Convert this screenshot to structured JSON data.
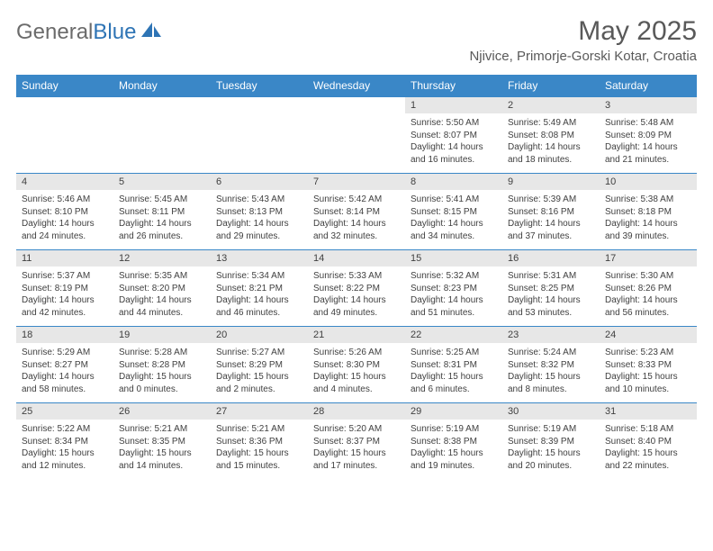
{
  "logo": {
    "part1": "General",
    "part2": "Blue"
  },
  "title": "May 2025",
  "location": "Njivice, Primorje-Gorski Kotar, Croatia",
  "day_headers": [
    "Sunday",
    "Monday",
    "Tuesday",
    "Wednesday",
    "Thursday",
    "Friday",
    "Saturday"
  ],
  "colors": {
    "header_bg": "#3a87c7",
    "header_text": "#ffffff",
    "daynum_bg": "#e7e7e7",
    "text": "#404040",
    "title_text": "#595959"
  },
  "weeks": [
    {
      "nums": [
        "",
        "",
        "",
        "",
        "1",
        "2",
        "3"
      ],
      "cells": [
        null,
        null,
        null,
        null,
        {
          "sunrise": "5:50 AM",
          "sunset": "8:07 PM",
          "daylight": "14 hours and 16 minutes."
        },
        {
          "sunrise": "5:49 AM",
          "sunset": "8:08 PM",
          "daylight": "14 hours and 18 minutes."
        },
        {
          "sunrise": "5:48 AM",
          "sunset": "8:09 PM",
          "daylight": "14 hours and 21 minutes."
        }
      ]
    },
    {
      "nums": [
        "4",
        "5",
        "6",
        "7",
        "8",
        "9",
        "10"
      ],
      "cells": [
        {
          "sunrise": "5:46 AM",
          "sunset": "8:10 PM",
          "daylight": "14 hours and 24 minutes."
        },
        {
          "sunrise": "5:45 AM",
          "sunset": "8:11 PM",
          "daylight": "14 hours and 26 minutes."
        },
        {
          "sunrise": "5:43 AM",
          "sunset": "8:13 PM",
          "daylight": "14 hours and 29 minutes."
        },
        {
          "sunrise": "5:42 AM",
          "sunset": "8:14 PM",
          "daylight": "14 hours and 32 minutes."
        },
        {
          "sunrise": "5:41 AM",
          "sunset": "8:15 PM",
          "daylight": "14 hours and 34 minutes."
        },
        {
          "sunrise": "5:39 AM",
          "sunset": "8:16 PM",
          "daylight": "14 hours and 37 minutes."
        },
        {
          "sunrise": "5:38 AM",
          "sunset": "8:18 PM",
          "daylight": "14 hours and 39 minutes."
        }
      ]
    },
    {
      "nums": [
        "11",
        "12",
        "13",
        "14",
        "15",
        "16",
        "17"
      ],
      "cells": [
        {
          "sunrise": "5:37 AM",
          "sunset": "8:19 PM",
          "daylight": "14 hours and 42 minutes."
        },
        {
          "sunrise": "5:35 AM",
          "sunset": "8:20 PM",
          "daylight": "14 hours and 44 minutes."
        },
        {
          "sunrise": "5:34 AM",
          "sunset": "8:21 PM",
          "daylight": "14 hours and 46 minutes."
        },
        {
          "sunrise": "5:33 AM",
          "sunset": "8:22 PM",
          "daylight": "14 hours and 49 minutes."
        },
        {
          "sunrise": "5:32 AM",
          "sunset": "8:23 PM",
          "daylight": "14 hours and 51 minutes."
        },
        {
          "sunrise": "5:31 AM",
          "sunset": "8:25 PM",
          "daylight": "14 hours and 53 minutes."
        },
        {
          "sunrise": "5:30 AM",
          "sunset": "8:26 PM",
          "daylight": "14 hours and 56 minutes."
        }
      ]
    },
    {
      "nums": [
        "18",
        "19",
        "20",
        "21",
        "22",
        "23",
        "24"
      ],
      "cells": [
        {
          "sunrise": "5:29 AM",
          "sunset": "8:27 PM",
          "daylight": "14 hours and 58 minutes."
        },
        {
          "sunrise": "5:28 AM",
          "sunset": "8:28 PM",
          "daylight": "15 hours and 0 minutes."
        },
        {
          "sunrise": "5:27 AM",
          "sunset": "8:29 PM",
          "daylight": "15 hours and 2 minutes."
        },
        {
          "sunrise": "5:26 AM",
          "sunset": "8:30 PM",
          "daylight": "15 hours and 4 minutes."
        },
        {
          "sunrise": "5:25 AM",
          "sunset": "8:31 PM",
          "daylight": "15 hours and 6 minutes."
        },
        {
          "sunrise": "5:24 AM",
          "sunset": "8:32 PM",
          "daylight": "15 hours and 8 minutes."
        },
        {
          "sunrise": "5:23 AM",
          "sunset": "8:33 PM",
          "daylight": "15 hours and 10 minutes."
        }
      ]
    },
    {
      "nums": [
        "25",
        "26",
        "27",
        "28",
        "29",
        "30",
        "31"
      ],
      "cells": [
        {
          "sunrise": "5:22 AM",
          "sunset": "8:34 PM",
          "daylight": "15 hours and 12 minutes."
        },
        {
          "sunrise": "5:21 AM",
          "sunset": "8:35 PM",
          "daylight": "15 hours and 14 minutes."
        },
        {
          "sunrise": "5:21 AM",
          "sunset": "8:36 PM",
          "daylight": "15 hours and 15 minutes."
        },
        {
          "sunrise": "5:20 AM",
          "sunset": "8:37 PM",
          "daylight": "15 hours and 17 minutes."
        },
        {
          "sunrise": "5:19 AM",
          "sunset": "8:38 PM",
          "daylight": "15 hours and 19 minutes."
        },
        {
          "sunrise": "5:19 AM",
          "sunset": "8:39 PM",
          "daylight": "15 hours and 20 minutes."
        },
        {
          "sunrise": "5:18 AM",
          "sunset": "8:40 PM",
          "daylight": "15 hours and 22 minutes."
        }
      ]
    }
  ],
  "labels": {
    "sunrise": "Sunrise: ",
    "sunset": "Sunset: ",
    "daylight": "Daylight: "
  }
}
